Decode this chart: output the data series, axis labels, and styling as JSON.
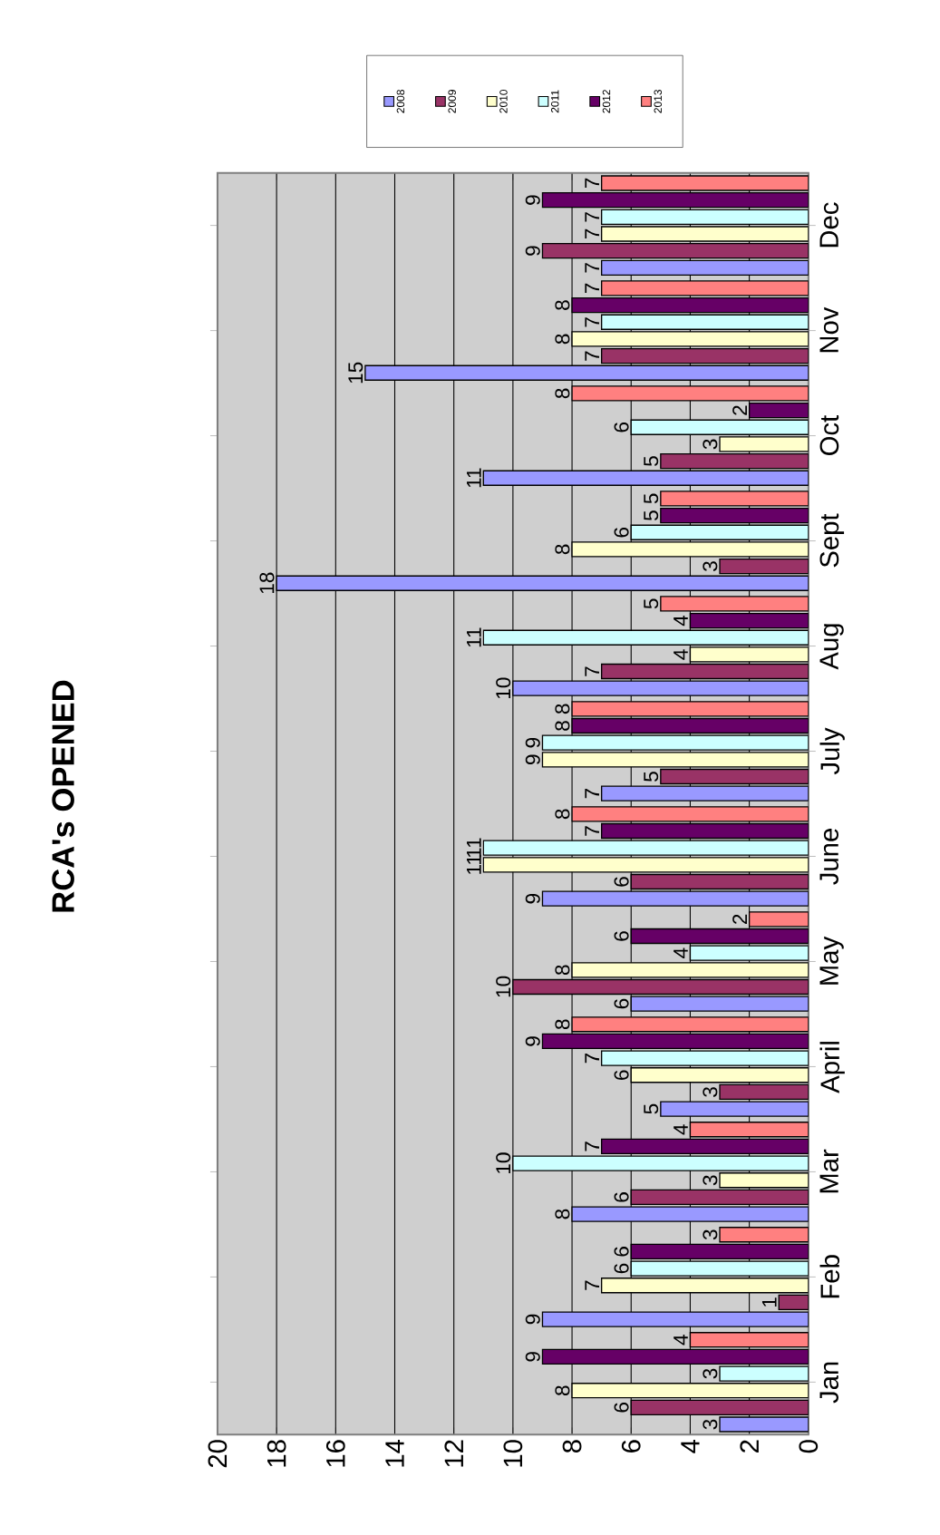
{
  "chart_data": {
    "type": "bar",
    "title": "RCA's OPENED",
    "orientation": "horizontal",
    "categories": [
      "Dec",
      "Nov",
      "Oct",
      "Sept",
      "Aug",
      "July",
      "June",
      "May",
      "April",
      "Mar",
      "Feb",
      "Jan"
    ],
    "series": [
      {
        "name": "2008",
        "color": "#9999ff",
        "values": [
          7,
          15,
          11,
          18,
          10,
          7,
          9,
          6,
          5,
          8,
          9,
          3
        ]
      },
      {
        "name": "2009",
        "color": "#993366",
        "values": [
          9,
          7,
          5,
          3,
          7,
          5,
          6,
          10,
          3,
          6,
          1,
          6
        ]
      },
      {
        "name": "2010",
        "color": "#ffffcc",
        "values": [
          7,
          8,
          3,
          8,
          4,
          9,
          11,
          8,
          6,
          3,
          7,
          8
        ]
      },
      {
        "name": "2011",
        "color": "#ccffff",
        "values": [
          7,
          7,
          6,
          6,
          11,
          9,
          11,
          4,
          7,
          10,
          6,
          3
        ]
      },
      {
        "name": "2012",
        "color": "#660066",
        "values": [
          9,
          8,
          2,
          5,
          4,
          8,
          7,
          6,
          9,
          7,
          6,
          9
        ]
      },
      {
        "name": "2013",
        "color": "#ff8080",
        "values": [
          7,
          7,
          8,
          5,
          5,
          8,
          8,
          2,
          8,
          4,
          3,
          4
        ]
      }
    ],
    "xlim": [
      20,
      0
    ],
    "xticks": [
      0,
      2,
      4,
      6,
      8,
      10,
      12,
      14,
      16,
      18,
      20
    ],
    "grid": "x",
    "legend": "top right",
    "data_labels": true
  }
}
